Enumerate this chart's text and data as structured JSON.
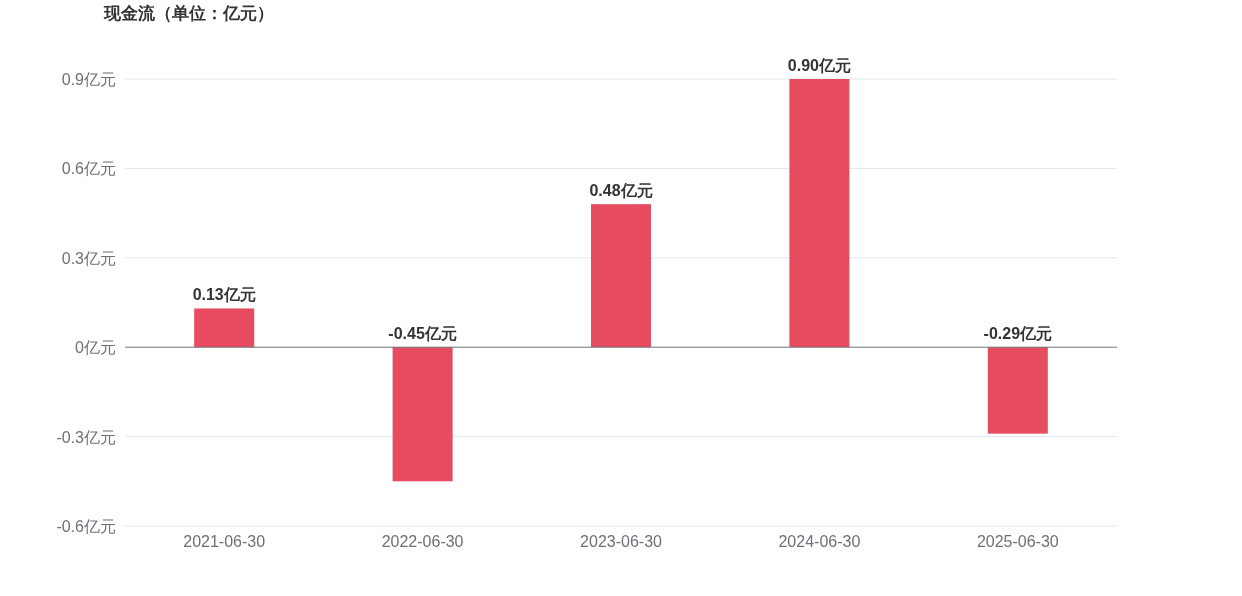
{
  "chart_data": {
    "type": "bar",
    "title": "现金流（单位：亿元）",
    "categories": [
      "2021-06-30",
      "2022-06-30",
      "2023-06-30",
      "2024-06-30",
      "2025-06-30"
    ],
    "values": [
      0.13,
      -0.45,
      0.48,
      0.9,
      -0.29
    ],
    "value_labels": [
      "0.13亿元",
      "-0.45亿元",
      "0.48亿元",
      "0.90亿元",
      "-0.29亿元"
    ],
    "color": "#e64b5f",
    "ylim": [
      -0.6,
      0.9
    ],
    "yticks": [
      {
        "value": -0.6,
        "label": "-0.6亿元"
      },
      {
        "value": -0.3,
        "label": "-0.3亿元"
      },
      {
        "value": 0,
        "label": "0亿元"
      },
      {
        "value": 0.3,
        "label": "0.3亿元"
      },
      {
        "value": 0.6,
        "label": "0.6亿元"
      },
      {
        "value": 0.9,
        "label": "0.9亿元"
      }
    ],
    "grid": "y"
  }
}
